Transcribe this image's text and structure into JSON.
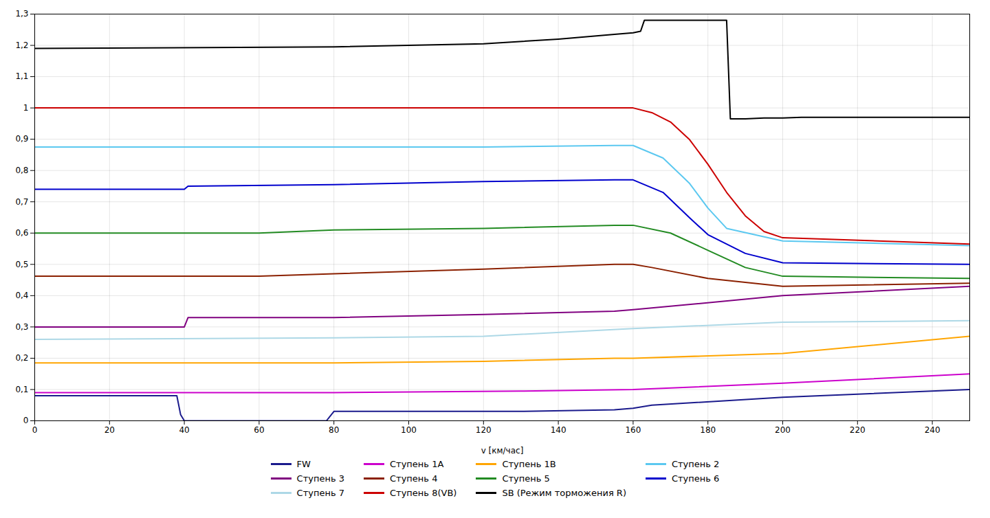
{
  "chart_data": {
    "type": "line",
    "xlabel": "v [км/час]",
    "xlim": [
      0,
      250
    ],
    "xticks": [
      0,
      20,
      40,
      60,
      80,
      100,
      120,
      140,
      160,
      180,
      200,
      220,
      240
    ],
    "ylim": [
      0,
      1.3
    ],
    "yticks": [
      0,
      {
        "value": 0.1,
        "label": "0,1"
      },
      {
        "value": 0.2,
        "label": "0,2"
      },
      {
        "value": 0.3,
        "label": "0,3"
      },
      {
        "value": 0.4,
        "label": "0,4"
      },
      {
        "value": 0.5,
        "label": "0,5"
      },
      {
        "value": 0.6,
        "label": "0,6"
      },
      {
        "value": 0.7,
        "label": "0,7"
      },
      {
        "value": 0.8,
        "label": "0,8"
      },
      {
        "value": 0.9,
        "label": "0,9"
      },
      1,
      {
        "value": 1.1,
        "label": "1,1"
      },
      {
        "value": 1.2,
        "label": "1,2"
      },
      {
        "value": 1.3,
        "label": "1,3"
      }
    ],
    "grid": true,
    "legend": "bottom",
    "series": [
      {
        "name": "FW",
        "color": "#1a1a8c",
        "x": [
          0,
          38,
          39,
          40,
          78,
          80,
          130,
          155,
          160,
          165,
          200,
          250
        ],
        "values": [
          0.08,
          0.08,
          0.02,
          0.0,
          0.0,
          0.03,
          0.03,
          0.035,
          0.04,
          0.05,
          0.075,
          0.1
        ]
      },
      {
        "name": "Ступень 1А",
        "color": "#CC00CC",
        "x": [
          0,
          80,
          130,
          160,
          200,
          250
        ],
        "values": [
          0.09,
          0.09,
          0.095,
          0.1,
          0.12,
          0.15
        ]
      },
      {
        "name": "Ступень 1В",
        "color": "#FFA500",
        "x": [
          0,
          80,
          120,
          155,
          160,
          200,
          250
        ],
        "values": [
          0.185,
          0.185,
          0.19,
          0.2,
          0.2,
          0.215,
          0.27
        ]
      },
      {
        "name": "Ступень 2",
        "color": "#5bc8f0",
        "x": [
          0,
          120,
          155,
          160,
          168,
          175,
          180,
          185,
          200,
          250
        ],
        "values": [
          0.875,
          0.875,
          0.88,
          0.88,
          0.84,
          0.76,
          0.68,
          0.615,
          0.575,
          0.56
        ]
      },
      {
        "name": "Ступень 3",
        "color": "#800080",
        "x": [
          0,
          40,
          41,
          80,
          120,
          155,
          160,
          200,
          250
        ],
        "values": [
          0.3,
          0.3,
          0.33,
          0.33,
          0.34,
          0.35,
          0.355,
          0.4,
          0.43
        ]
      },
      {
        "name": "Ступень 4",
        "color": "#8B2000",
        "x": [
          0,
          60,
          80,
          120,
          155,
          160,
          165,
          180,
          200,
          250
        ],
        "values": [
          0.462,
          0.462,
          0.47,
          0.485,
          0.5,
          0.5,
          0.49,
          0.455,
          0.43,
          0.44
        ]
      },
      {
        "name": "Ступень 5",
        "color": "#228B22",
        "x": [
          0,
          60,
          80,
          120,
          155,
          160,
          170,
          180,
          190,
          200,
          250
        ],
        "values": [
          0.6,
          0.6,
          0.61,
          0.615,
          0.625,
          0.625,
          0.6,
          0.545,
          0.49,
          0.462,
          0.455
        ]
      },
      {
        "name": "Ступень 6",
        "color": "#0000CD",
        "x": [
          0,
          40,
          41,
          80,
          120,
          155,
          160,
          168,
          175,
          180,
          190,
          200,
          250
        ],
        "values": [
          0.74,
          0.74,
          0.75,
          0.755,
          0.765,
          0.77,
          0.77,
          0.73,
          0.65,
          0.595,
          0.535,
          0.505,
          0.5
        ]
      },
      {
        "name": "Ступень 7",
        "color": "#ADD8E6",
        "x": [
          0,
          80,
          120,
          160,
          200,
          250
        ],
        "values": [
          0.26,
          0.265,
          0.27,
          0.295,
          0.315,
          0.32
        ]
      },
      {
        "name": "Ступень 8(VB)",
        "color": "#CC0000",
        "x": [
          0,
          155,
          160,
          165,
          170,
          175,
          180,
          185,
          190,
          195,
          200,
          250
        ],
        "values": [
          1.0,
          1.0,
          1.0,
          0.985,
          0.955,
          0.9,
          0.82,
          0.73,
          0.655,
          0.605,
          0.585,
          0.565
        ]
      },
      {
        "name": "SB (Режим торможения R)",
        "color": "#000000",
        "x": [
          0,
          80,
          120,
          140,
          155,
          160,
          162,
          163,
          185,
          186,
          190,
          195,
          200,
          205,
          250
        ],
        "values": [
          1.19,
          1.195,
          1.205,
          1.22,
          1.235,
          1.24,
          1.245,
          1.28,
          1.28,
          0.965,
          0.965,
          0.968,
          0.968,
          0.97,
          0.97
        ]
      }
    ]
  }
}
